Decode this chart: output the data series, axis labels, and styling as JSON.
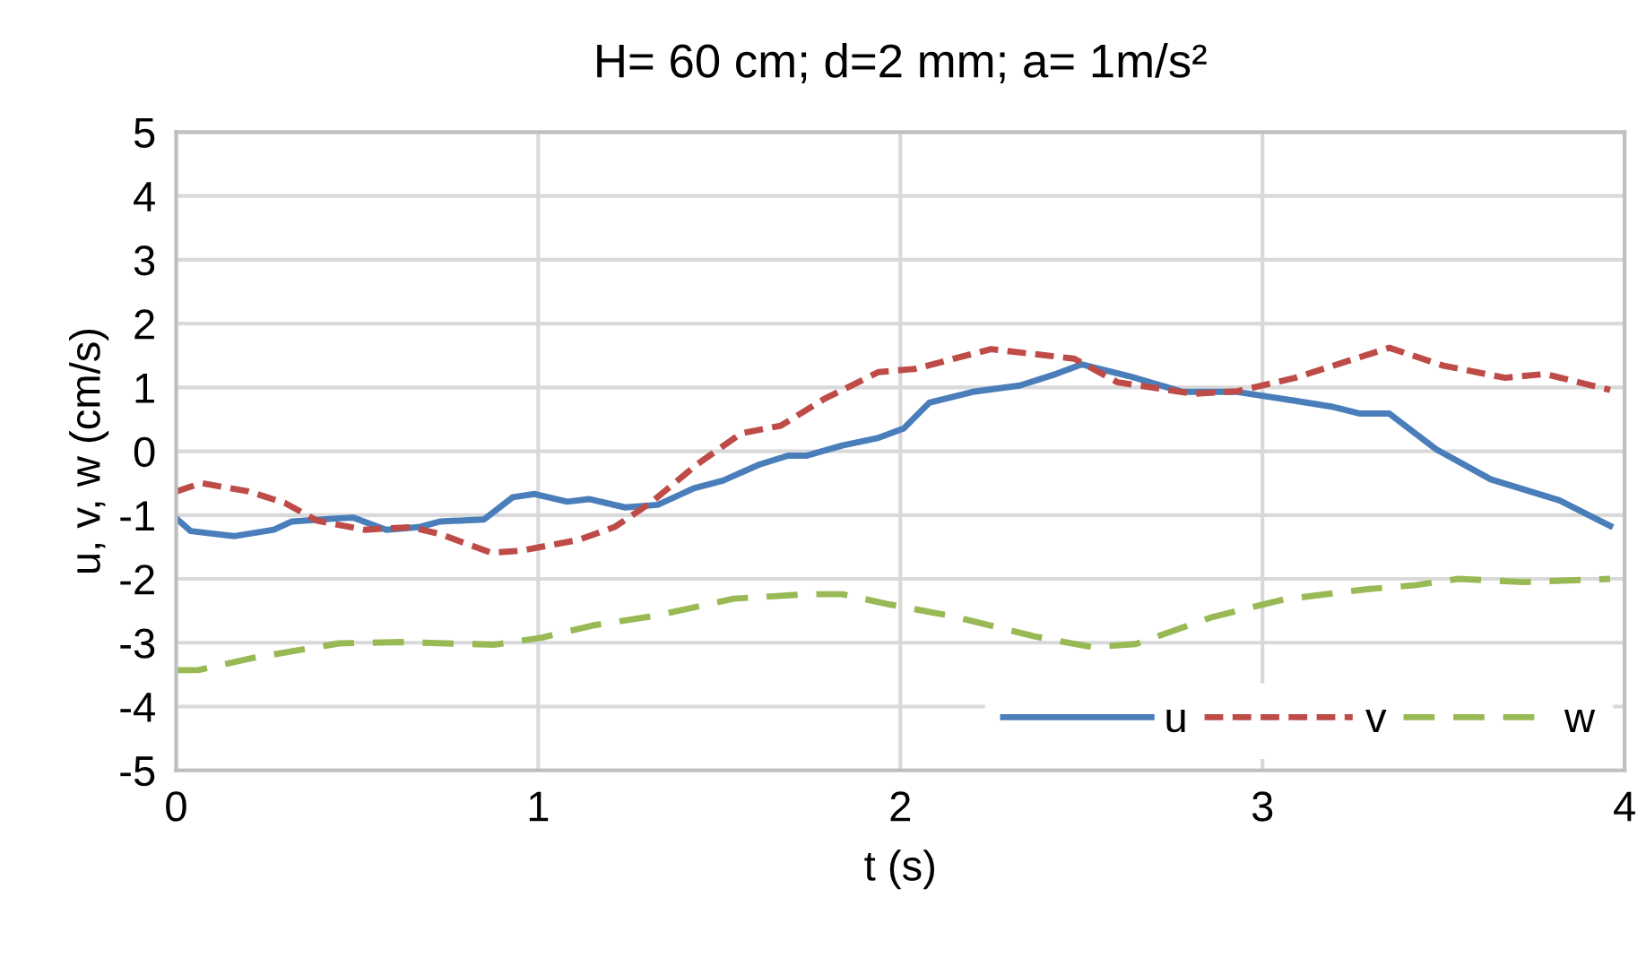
{
  "chart_data": {
    "type": "line",
    "title": "H= 60 cm; d=2 mm; a= 1m/s²",
    "xlabel": "t (s)",
    "ylabel": "u, v, w (cm/s)",
    "xlim": [
      0,
      4
    ],
    "xticks": [
      0,
      1,
      2,
      3,
      4
    ],
    "ylim": [
      -5,
      5
    ],
    "yticks": [
      -5,
      -4,
      -3,
      -2,
      -1,
      0,
      1,
      2,
      3,
      4,
      5
    ],
    "grid": true,
    "legend": "bottom right",
    "marker": "none",
    "series": [
      {
        "name": "u",
        "color": "#4a7ebb",
        "line_style": "solid",
        "x": [
          0,
          0.04,
          0.16,
          0.27,
          0.32,
          0.45,
          0.49,
          0.58,
          0.67,
          0.73,
          0.85,
          0.93,
          0.99,
          1.08,
          1.14,
          1.24,
          1.33,
          1.43,
          1.51,
          1.61,
          1.69,
          1.74,
          1.84,
          1.94,
          2.01,
          2.08,
          2.2,
          2.33,
          2.43,
          2.5,
          2.63,
          2.78,
          2.93,
          3.09,
          3.19,
          3.27,
          3.35,
          3.48,
          3.63,
          3.82,
          3.96
        ],
        "values": [
          -1.05,
          -1.25,
          -1.33,
          -1.23,
          -1.1,
          -1.05,
          -1.04,
          -1.23,
          -1.19,
          -1.1,
          -1.07,
          -0.72,
          -0.67,
          -0.79,
          -0.75,
          -0.88,
          -0.84,
          -0.58,
          -0.46,
          -0.21,
          -0.07,
          -0.07,
          0.09,
          0.21,
          0.36,
          0.76,
          0.93,
          1.03,
          1.21,
          1.36,
          1.18,
          0.93,
          0.93,
          0.79,
          0.7,
          0.59,
          0.59,
          0.03,
          -0.44,
          -0.77,
          -1.17
        ]
      },
      {
        "name": "v",
        "color": "#be4b48",
        "line_style": "dashed",
        "x": [
          0,
          0.07,
          0.2,
          0.3,
          0.39,
          0.52,
          0.65,
          0.73,
          0.87,
          0.95,
          1.11,
          1.21,
          1.31,
          1.44,
          1.56,
          1.67,
          1.79,
          1.94,
          2.04,
          2.25,
          2.48,
          2.6,
          2.81,
          2.93,
          3.09,
          3.35,
          3.5,
          3.67,
          3.78,
          3.96
        ],
        "values": [
          -0.63,
          -0.5,
          -0.63,
          -0.81,
          -1.09,
          -1.23,
          -1.19,
          -1.3,
          -1.59,
          -1.56,
          -1.39,
          -1.19,
          -0.81,
          -0.2,
          0.28,
          0.4,
          0.82,
          1.24,
          1.29,
          1.6,
          1.45,
          1.08,
          0.9,
          0.94,
          1.15,
          1.62,
          1.34,
          1.15,
          1.21,
          0.96
        ]
      },
      {
        "name": "w",
        "color": "#98b954",
        "line_style": "dashed",
        "x": [
          0,
          0.06,
          0.21,
          0.45,
          0.62,
          0.88,
          1.01,
          1.15,
          1.33,
          1.54,
          1.74,
          1.84,
          1.97,
          2.14,
          2.37,
          2.53,
          2.65,
          2.86,
          3.06,
          3.29,
          3.42,
          3.54,
          3.72,
          3.96
        ],
        "values": [
          -3.43,
          -3.43,
          -3.24,
          -3.01,
          -2.99,
          -3.03,
          -2.92,
          -2.73,
          -2.57,
          -2.31,
          -2.24,
          -2.24,
          -2.4,
          -2.58,
          -2.9,
          -3.07,
          -3.02,
          -2.6,
          -2.32,
          -2.16,
          -2.1,
          -2.0,
          -2.05,
          -2.0
        ]
      }
    ]
  }
}
